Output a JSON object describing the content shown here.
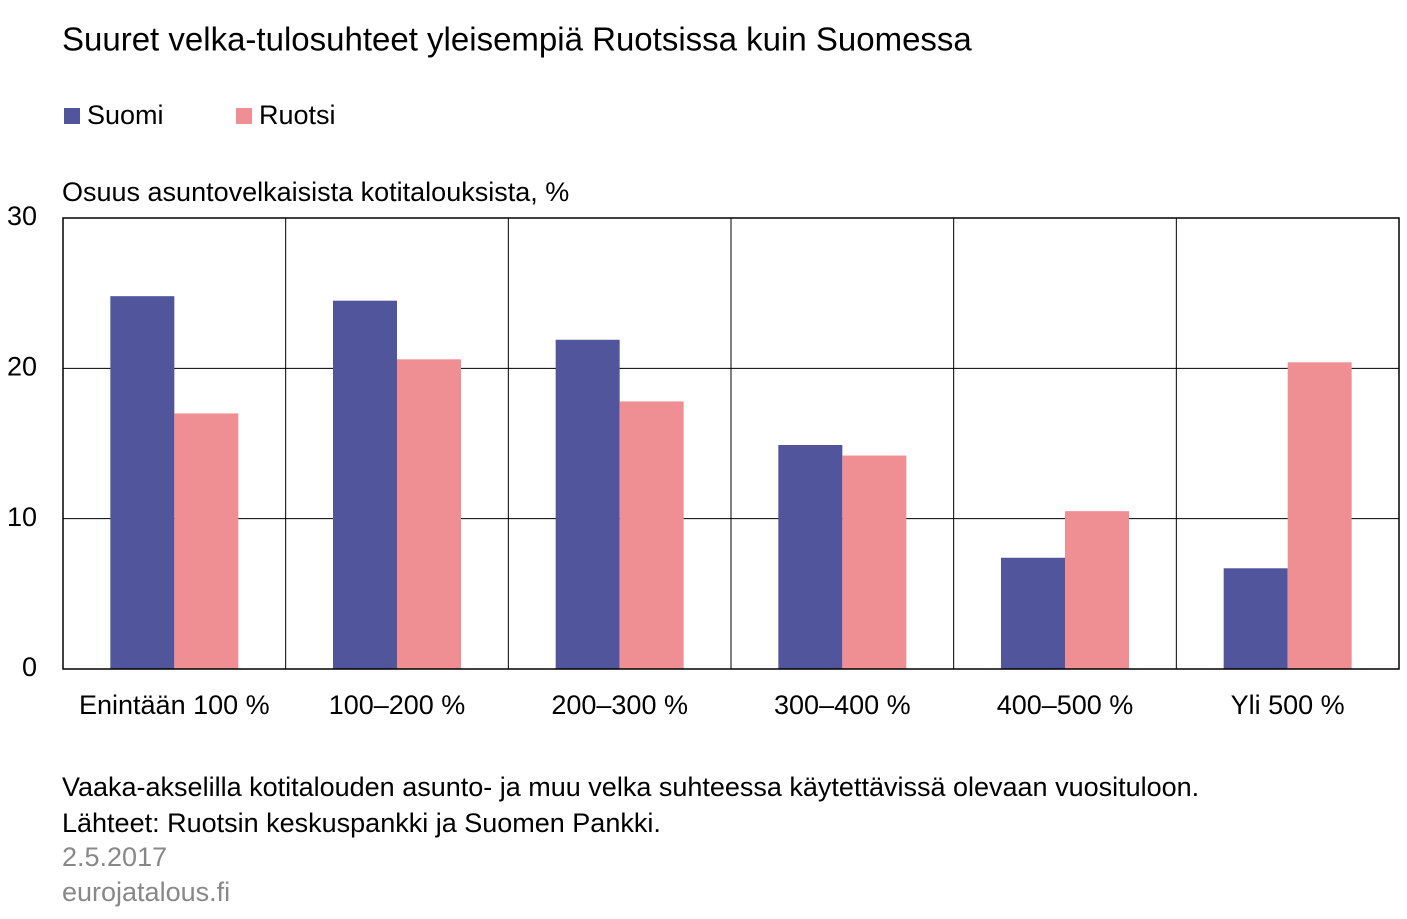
{
  "chart_data": {
    "type": "bar",
    "title": "Suuret velka-tulosuhteet yleisempiä Ruotsissa kuin Suomessa",
    "y_label": "Osuus asuntovelkaisista kotitalouksista, %",
    "categories": [
      "Enintään 100 %",
      "100–200 %",
      "200–300 %",
      "300–400 %",
      "400–500 %",
      "Yli 500 %"
    ],
    "series": [
      {
        "name": "Suomi",
        "color": "#50559c",
        "values": [
          24.8,
          24.5,
          21.9,
          14.9,
          7.4,
          6.7
        ]
      },
      {
        "name": "Ruotsi",
        "color": "#f08f93",
        "values": [
          17.0,
          20.6,
          17.8,
          14.2,
          10.5,
          20.4
        ]
      }
    ],
    "ylim": [
      0,
      30
    ],
    "yticks": [
      0,
      10,
      20,
      30
    ],
    "grid": true,
    "notes": [
      "Vaaka-akselilla kotitalouden asunto- ja muu velka suhteessa käytettävissä olevaan vuosituloon.",
      "Lähteet: Ruotsin keskuspankki ja Suomen Pankki."
    ],
    "date": "2.5.2017",
    "source": "eurojatalous.fi"
  }
}
